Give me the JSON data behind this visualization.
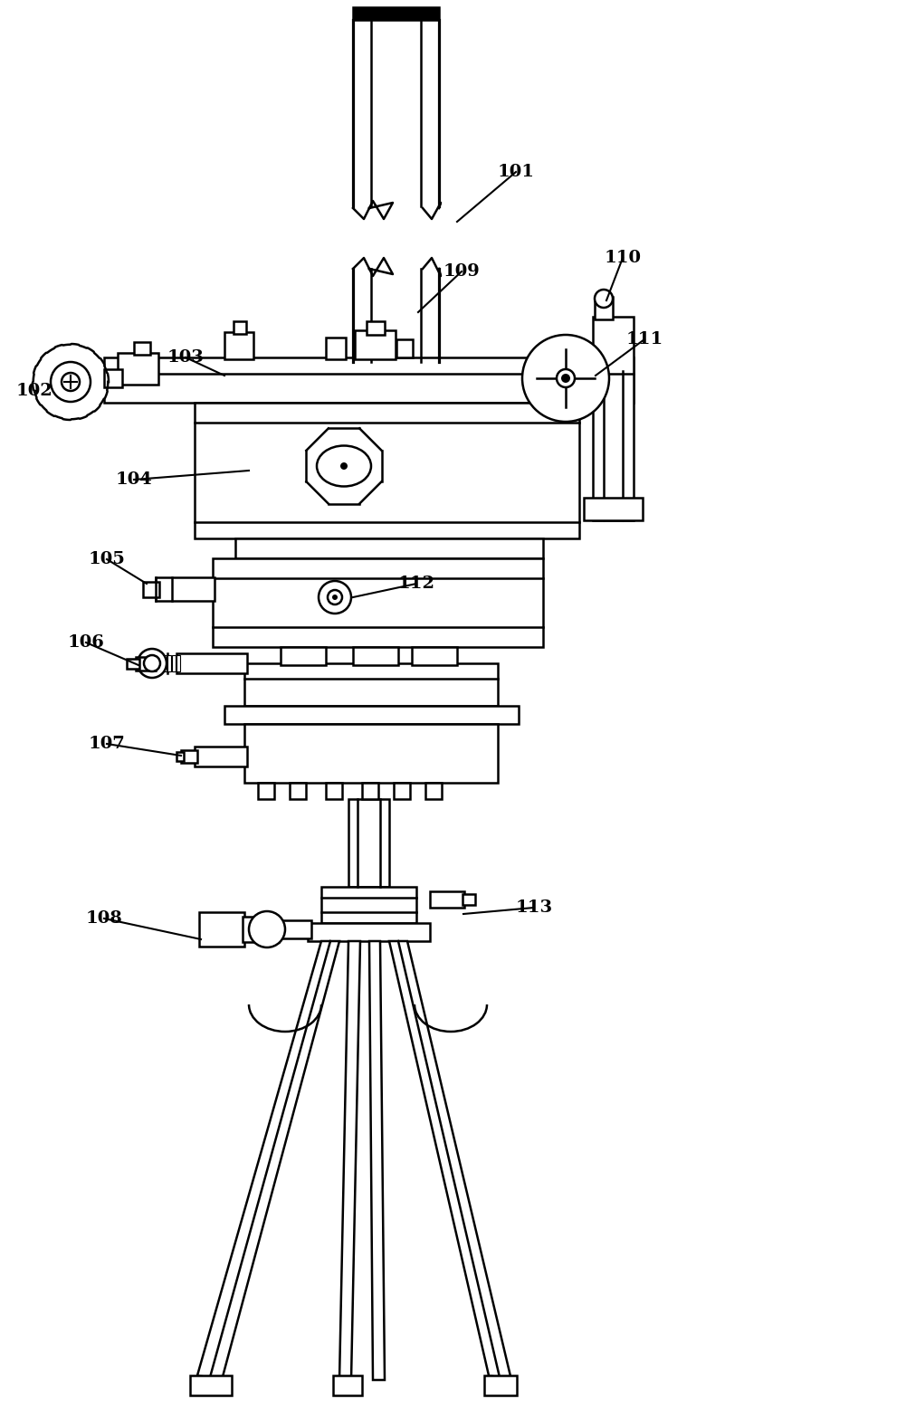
{
  "bg_color": "#ffffff",
  "lw": 1.8,
  "lc": "#000000"
}
